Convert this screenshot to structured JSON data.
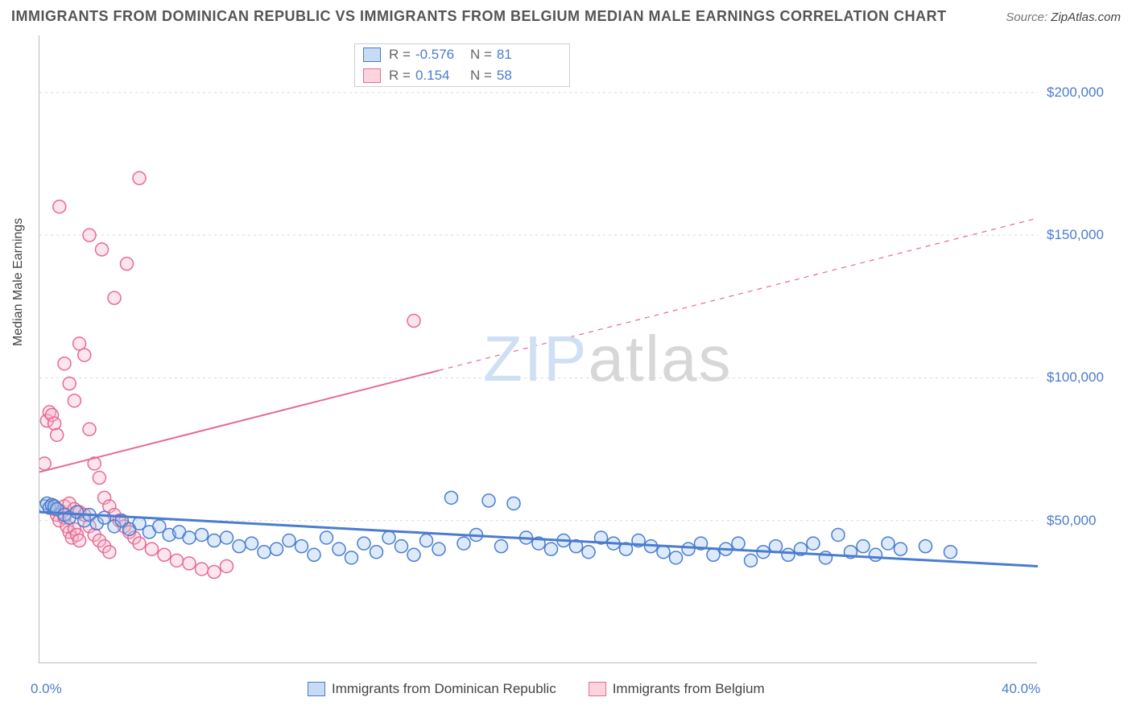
{
  "title": "IMMIGRANTS FROM DOMINICAN REPUBLIC VS IMMIGRANTS FROM BELGIUM MEDIAN MALE EARNINGS CORRELATION CHART",
  "source_prefix": "Source: ",
  "source_link": "ZipAtlas.com",
  "y_axis_label": "Median Male Earnings",
  "watermark_a": "ZIP",
  "watermark_b": "atlas",
  "chart": {
    "type": "scatter",
    "xlim": [
      0,
      40
    ],
    "ylim": [
      0,
      220000
    ],
    "x_ticks": [
      0,
      5,
      10,
      15,
      20,
      25,
      30,
      35,
      40
    ],
    "y_ticks": [
      50000,
      100000,
      150000,
      200000
    ],
    "y_tick_labels": [
      "$50,000",
      "$100,000",
      "$150,000",
      "$200,000"
    ],
    "x_edge_labels": [
      "0.0%",
      "40.0%"
    ],
    "background_color": "#ffffff",
    "grid_color": "#d9d9d9",
    "axis_color": "#bbbbbb",
    "tick_label_color": "#4a7ccf",
    "axis_title_fontsize": 16,
    "tick_label_fontsize": 17,
    "title_fontsize": 18,
    "marker_radius": 8,
    "marker_stroke_width": 1.5,
    "marker_fill_opacity": 0.35,
    "series": {
      "dominican": {
        "label": "Immigrants from Dominican Republic",
        "stroke": "#4a7ccf",
        "fill": "#9ec2ee",
        "R": "-0.576",
        "N": "81",
        "trend": {
          "y_at_x0": 53000,
          "y_at_x40": 34000,
          "solid_until_x": 40,
          "width": 3
        },
        "points": [
          [
            0.2,
            55000
          ],
          [
            0.3,
            56000
          ],
          [
            0.4,
            54500
          ],
          [
            0.5,
            55500
          ],
          [
            0.6,
            55000
          ],
          [
            0.7,
            54000
          ],
          [
            1.0,
            52000
          ],
          [
            1.2,
            51000
          ],
          [
            1.5,
            53000
          ],
          [
            1.8,
            50000
          ],
          [
            2.0,
            52000
          ],
          [
            2.3,
            49000
          ],
          [
            2.6,
            51000
          ],
          [
            3.0,
            48000
          ],
          [
            3.3,
            50000
          ],
          [
            3.6,
            47000
          ],
          [
            4.0,
            49000
          ],
          [
            4.4,
            46000
          ],
          [
            4.8,
            48000
          ],
          [
            5.2,
            45000
          ],
          [
            5.6,
            46000
          ],
          [
            6.0,
            44000
          ],
          [
            6.5,
            45000
          ],
          [
            7.0,
            43000
          ],
          [
            7.5,
            44000
          ],
          [
            8.0,
            41000
          ],
          [
            8.5,
            42000
          ],
          [
            9.0,
            39000
          ],
          [
            9.5,
            40000
          ],
          [
            10.0,
            43000
          ],
          [
            10.5,
            41000
          ],
          [
            11.0,
            38000
          ],
          [
            11.5,
            44000
          ],
          [
            12.0,
            40000
          ],
          [
            12.5,
            37000
          ],
          [
            13.0,
            42000
          ],
          [
            13.5,
            39000
          ],
          [
            14.0,
            44000
          ],
          [
            14.5,
            41000
          ],
          [
            15.0,
            38000
          ],
          [
            15.5,
            43000
          ],
          [
            16.0,
            40000
          ],
          [
            16.5,
            58000
          ],
          [
            17.0,
            42000
          ],
          [
            17.5,
            45000
          ],
          [
            18.0,
            57000
          ],
          [
            18.5,
            41000
          ],
          [
            19.0,
            56000
          ],
          [
            19.5,
            44000
          ],
          [
            20.0,
            42000
          ],
          [
            20.5,
            40000
          ],
          [
            21.0,
            43000
          ],
          [
            21.5,
            41000
          ],
          [
            22.0,
            39000
          ],
          [
            22.5,
            44000
          ],
          [
            23.0,
            42000
          ],
          [
            23.5,
            40000
          ],
          [
            24.0,
            43000
          ],
          [
            24.5,
            41000
          ],
          [
            25.0,
            39000
          ],
          [
            25.5,
            37000
          ],
          [
            26.0,
            40000
          ],
          [
            26.5,
            42000
          ],
          [
            27.0,
            38000
          ],
          [
            27.5,
            40000
          ],
          [
            28.0,
            42000
          ],
          [
            28.5,
            36000
          ],
          [
            29.0,
            39000
          ],
          [
            29.5,
            41000
          ],
          [
            30.0,
            38000
          ],
          [
            30.5,
            40000
          ],
          [
            31.0,
            42000
          ],
          [
            31.5,
            37000
          ],
          [
            32.0,
            45000
          ],
          [
            32.5,
            39000
          ],
          [
            33.0,
            41000
          ],
          [
            33.5,
            38000
          ],
          [
            34.0,
            42000
          ],
          [
            34.5,
            40000
          ],
          [
            35.5,
            41000
          ],
          [
            36.5,
            39000
          ]
        ]
      },
      "belgium": {
        "label": "Immigrants from Belgium",
        "stroke": "#e76a93",
        "fill": "#f6b4c8",
        "R": "0.154",
        "N": "58",
        "trend": {
          "y_at_x0": 67000,
          "y_at_x40": 156000,
          "solid_until_x": 16,
          "width": 2
        },
        "points": [
          [
            0.2,
            70000
          ],
          [
            0.3,
            85000
          ],
          [
            0.4,
            88000
          ],
          [
            0.5,
            87000
          ],
          [
            0.6,
            84000
          ],
          [
            0.7,
            80000
          ],
          [
            0.5,
            55000
          ],
          [
            0.6,
            54000
          ],
          [
            0.7,
            52000
          ],
          [
            0.8,
            50000
          ],
          [
            0.9,
            53000
          ],
          [
            1.0,
            51000
          ],
          [
            1.1,
            48000
          ],
          [
            1.2,
            46000
          ],
          [
            1.3,
            44000
          ],
          [
            1.4,
            47000
          ],
          [
            1.5,
            45000
          ],
          [
            1.6,
            43000
          ],
          [
            1.0,
            105000
          ],
          [
            1.2,
            98000
          ],
          [
            1.4,
            92000
          ],
          [
            0.8,
            160000
          ],
          [
            1.6,
            112000
          ],
          [
            1.8,
            108000
          ],
          [
            2.0,
            82000
          ],
          [
            2.2,
            70000
          ],
          [
            2.4,
            65000
          ],
          [
            2.6,
            58000
          ],
          [
            2.8,
            55000
          ],
          [
            3.0,
            52000
          ],
          [
            3.2,
            50000
          ],
          [
            3.4,
            48000
          ],
          [
            3.6,
            46000
          ],
          [
            3.8,
            44000
          ],
          [
            4.0,
            42000
          ],
          [
            4.5,
            40000
          ],
          [
            5.0,
            38000
          ],
          [
            5.5,
            36000
          ],
          [
            6.0,
            35000
          ],
          [
            6.5,
            33000
          ],
          [
            7.0,
            32000
          ],
          [
            2.0,
            150000
          ],
          [
            2.5,
            145000
          ],
          [
            3.0,
            128000
          ],
          [
            3.5,
            140000
          ],
          [
            4.0,
            170000
          ],
          [
            1.0,
            55000
          ],
          [
            1.2,
            56000
          ],
          [
            1.4,
            54000
          ],
          [
            1.6,
            53000
          ],
          [
            1.8,
            52000
          ],
          [
            2.0,
            48000
          ],
          [
            2.2,
            45000
          ],
          [
            2.4,
            43000
          ],
          [
            2.6,
            41000
          ],
          [
            2.8,
            39000
          ],
          [
            7.5,
            34000
          ],
          [
            15.0,
            120000
          ]
        ]
      }
    }
  },
  "legend_top": {
    "R_label": "R =",
    "N_label": "N ="
  }
}
